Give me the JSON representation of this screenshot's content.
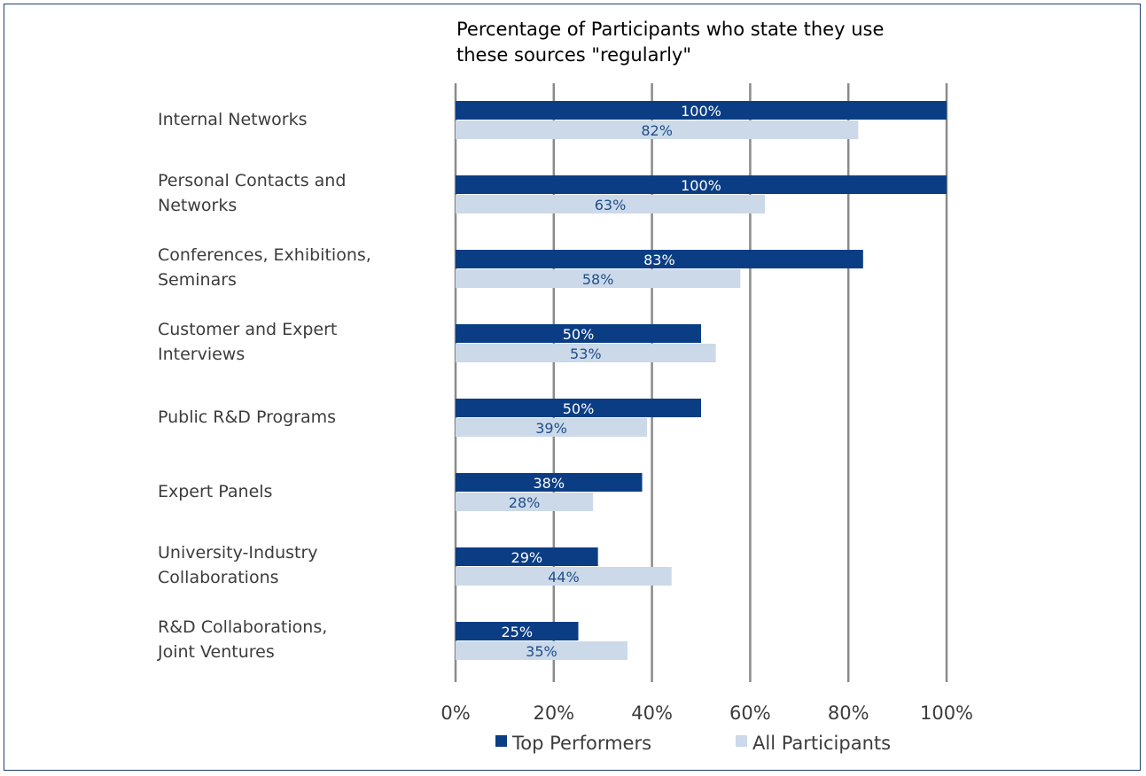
{
  "chart_data": {
    "type": "bar",
    "orientation": "horizontal",
    "title": "Percentage  of Participants who state they use these sources \"regularly\"",
    "title_lines": [
      "Percentage  of Participants who state they use",
      "these sources \"regularly\""
    ],
    "categories": [
      [
        "Internal Networks"
      ],
      [
        "Personal Contacts and",
        "Networks"
      ],
      [
        "Conferences, Exhibitions,",
        "Seminars"
      ],
      [
        "Customer and Expert",
        " Interviews"
      ],
      [
        "Public R&D Programs"
      ],
      [
        "Expert Panels"
      ],
      [
        "University-Industry",
        "Collaborations"
      ],
      [
        "R&D Collaborations,",
        "Joint Ventures"
      ]
    ],
    "series": [
      {
        "name": "Top Performers",
        "color": "#0b3d84",
        "values": [
          100,
          100,
          83,
          50,
          50,
          38,
          29,
          25
        ]
      },
      {
        "name": "All Participants",
        "color": "#cbd9e8",
        "values": [
          82,
          63,
          58,
          53,
          39,
          28,
          44,
          35
        ]
      }
    ],
    "value_suffix": "%",
    "xlim": [
      0,
      100
    ],
    "xticks": [
      "0%",
      "20%",
      "40%",
      "60%",
      "80%",
      "100%"
    ],
    "grid": true,
    "legend_position": "bottom"
  }
}
